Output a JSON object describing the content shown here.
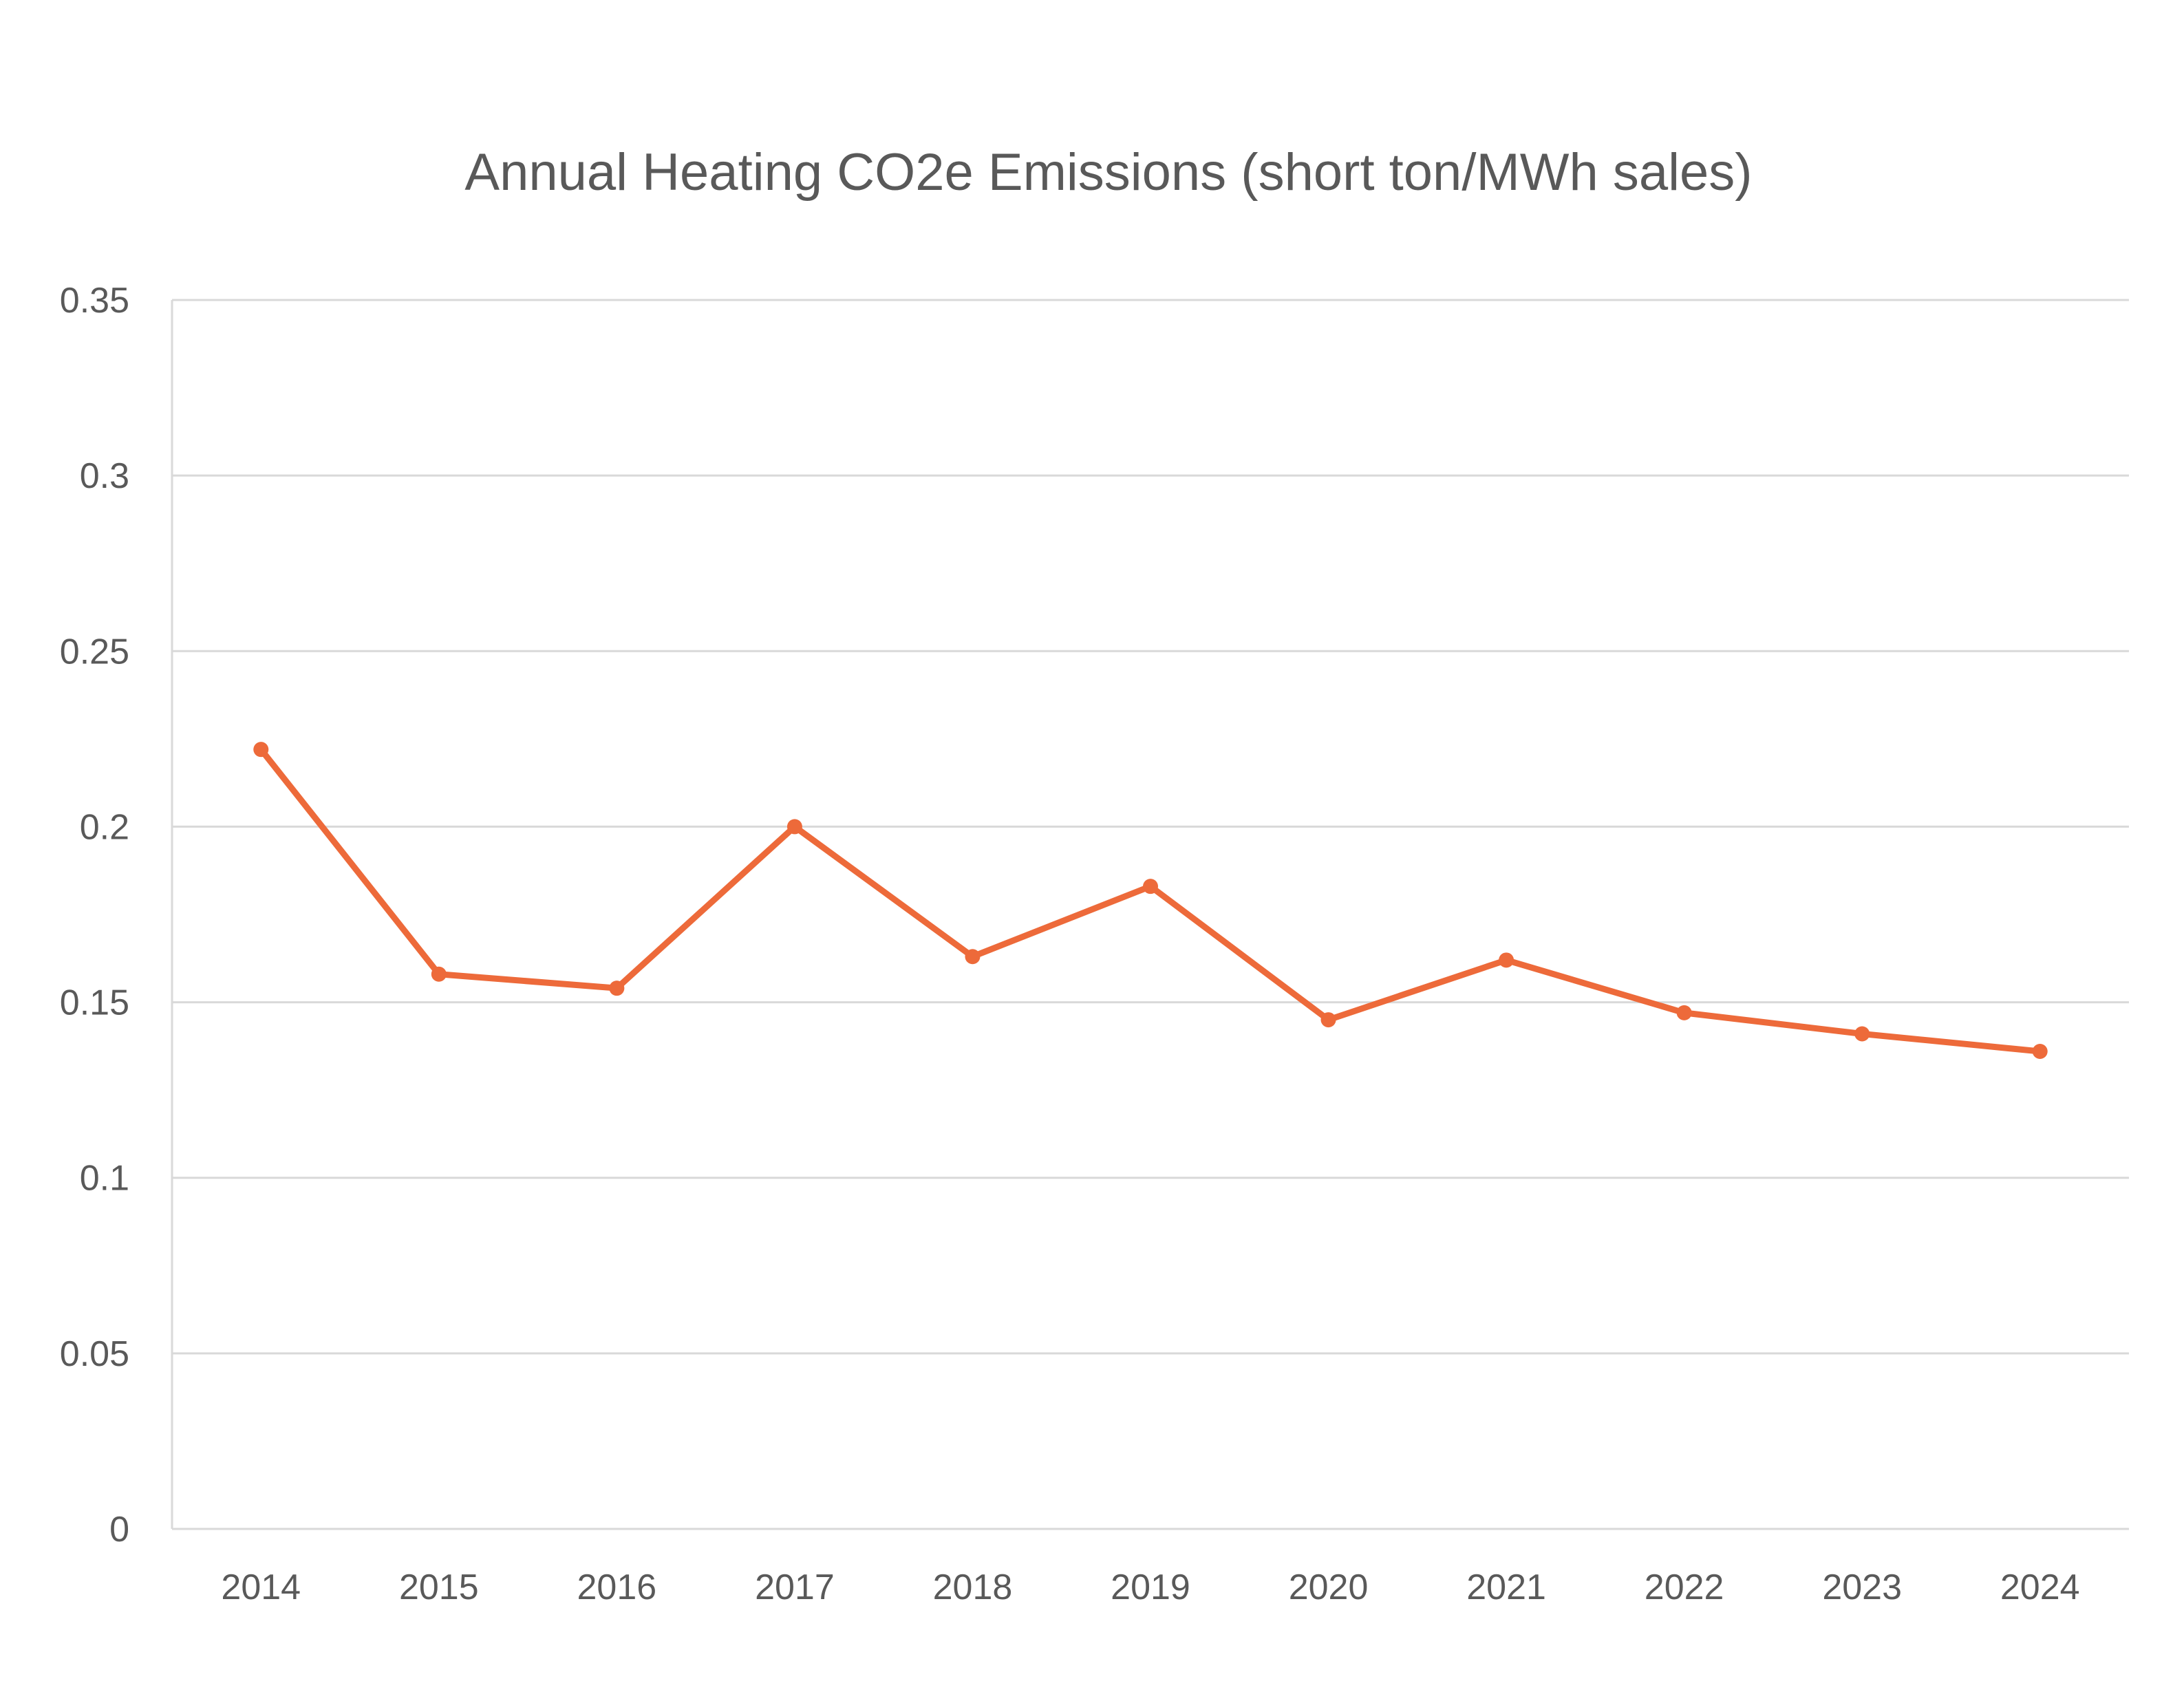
{
  "chart_data": {
    "type": "line",
    "title": "Annual Heating CO2e Emissions (short ton/MWh sales)",
    "xlabel": "",
    "ylabel": "",
    "categories": [
      "2014",
      "2015",
      "2016",
      "2017",
      "2018",
      "2019",
      "2020",
      "2021",
      "2022",
      "2023",
      "2024"
    ],
    "series": [
      {
        "values": [
          0.222,
          0.158,
          0.154,
          0.2,
          0.163,
          0.183,
          0.145,
          0.162,
          0.147,
          0.141,
          0.136
        ],
        "color": "#ED6A3A"
      }
    ],
    "ylim": [
      0,
      0.35
    ],
    "yticks": [
      "0",
      "0.05",
      "0.1",
      "0.15",
      "0.2",
      "0.25",
      "0.3",
      "0.35"
    ],
    "ytick_values": [
      0,
      0.05,
      0.1,
      0.15,
      0.2,
      0.25,
      0.3,
      0.35
    ],
    "grid": true,
    "legend": "none",
    "markers": true
  }
}
